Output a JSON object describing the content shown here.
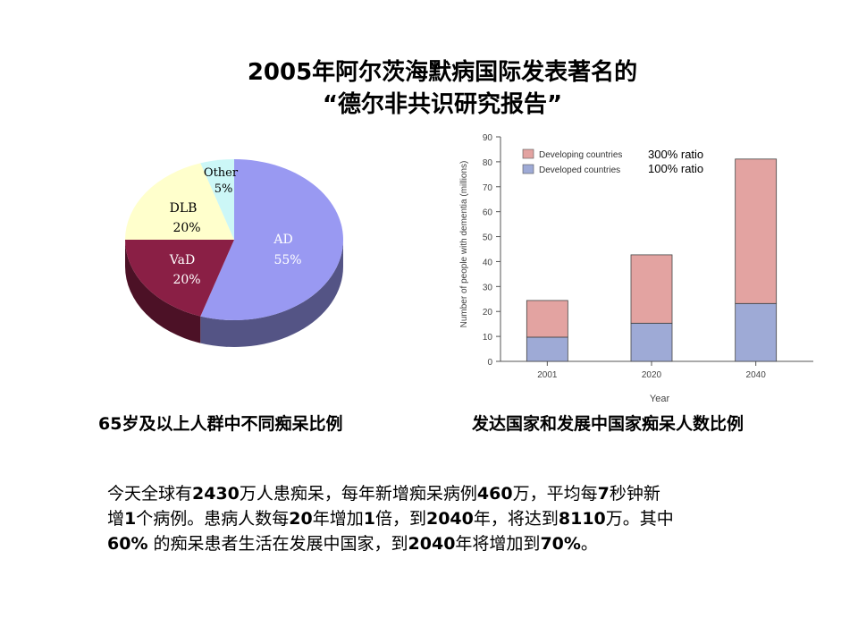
{
  "title": {
    "line1": "2005年阿尔茨海默病国际发表著名的",
    "line2": "“德尔非共识研究报告”"
  },
  "captions": {
    "pie": "65岁及以上人群中不同痴呆比例",
    "bar": "发达国家和发展中国家痴呆人数比例"
  },
  "body_text": [
    "今天全球有2430万人患痴呆，每年新增痴呆病例460万，平均每7秒钟新",
    "增1个病例。患病人数每20年增加1倍，到2040年，将达到8110万。其中",
    "60% 的痴呆患者生活在发展中国家，到2040年将增加到70%。"
  ],
  "chart_data": [
    {
      "type": "pie",
      "slices": [
        {
          "name": "AD",
          "label": "55%",
          "value": 55,
          "color": "#9999f2"
        },
        {
          "name": "VaD",
          "label": "20%",
          "value": 20,
          "color": "#8a1f45"
        },
        {
          "name": "DLB",
          "label": "20%",
          "value": 20,
          "color": "#ffffcc"
        },
        {
          "name": "Other",
          "label": "5%",
          "value": 5,
          "color": "#ccf7f7"
        }
      ]
    },
    {
      "type": "bar",
      "stacked": true,
      "categories": [
        "2001",
        "2020",
        "2040"
      ],
      "series": [
        {
          "name": "Developed countries",
          "values": [
            9.7,
            15.3,
            23.2
          ],
          "color": "#9eaad6"
        },
        {
          "name": "Developing countries",
          "values": [
            14.7,
            27.4,
            57.9
          ],
          "color": "#e3a3a1"
        }
      ],
      "xlabel": "Year",
      "ylabel": "Number of people with dementia (millions)",
      "ylim": [
        0,
        90
      ],
      "yticks": [
        0,
        10,
        20,
        30,
        40,
        50,
        60,
        70,
        80,
        90
      ],
      "legend_position": "top-left",
      "annotations": [
        "300% ratio",
        "100% ratio"
      ]
    }
  ]
}
